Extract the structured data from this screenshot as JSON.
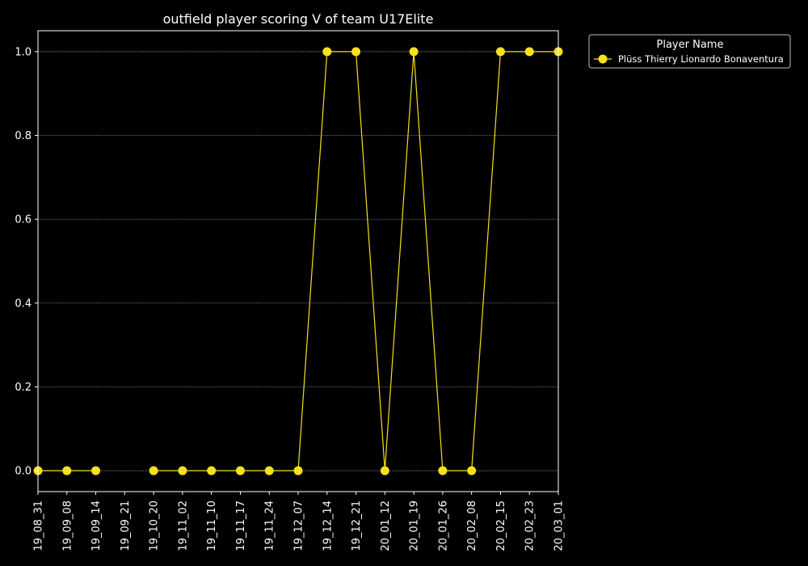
{
  "chart_data": {
    "type": "line",
    "title": "outfield player scoring V of team U17Elite",
    "xlabel": "",
    "ylabel": "",
    "categories": [
      "19_08_31",
      "19_09_08",
      "19_09_14",
      "19_09_21",
      "19_10_20",
      "19_11_02",
      "19_11_10",
      "19_11_17",
      "19_11_24",
      "19_12_07",
      "19_12_14",
      "19_12_21",
      "20_01_12",
      "20_01_19",
      "20_01_26",
      "20_02_08",
      "20_02_15",
      "20_02_23",
      "20_03_01"
    ],
    "y_ticks": [
      "0.0",
      "0.2",
      "0.4",
      "0.6",
      "0.8",
      "1.0"
    ],
    "ylim": [
      -0.05,
      1.05
    ],
    "grid": "horizontal, dotted",
    "legend": {
      "title": "Player Name",
      "placement": "outside top-right"
    },
    "series": [
      {
        "name": "Plüss Thierry Lionardo Bonaventura",
        "color": "#f7e01c",
        "values": [
          0,
          0,
          0,
          null,
          0,
          0,
          0,
          0,
          0,
          0,
          1,
          1,
          0,
          1,
          0,
          0,
          1,
          1,
          1
        ]
      }
    ]
  }
}
